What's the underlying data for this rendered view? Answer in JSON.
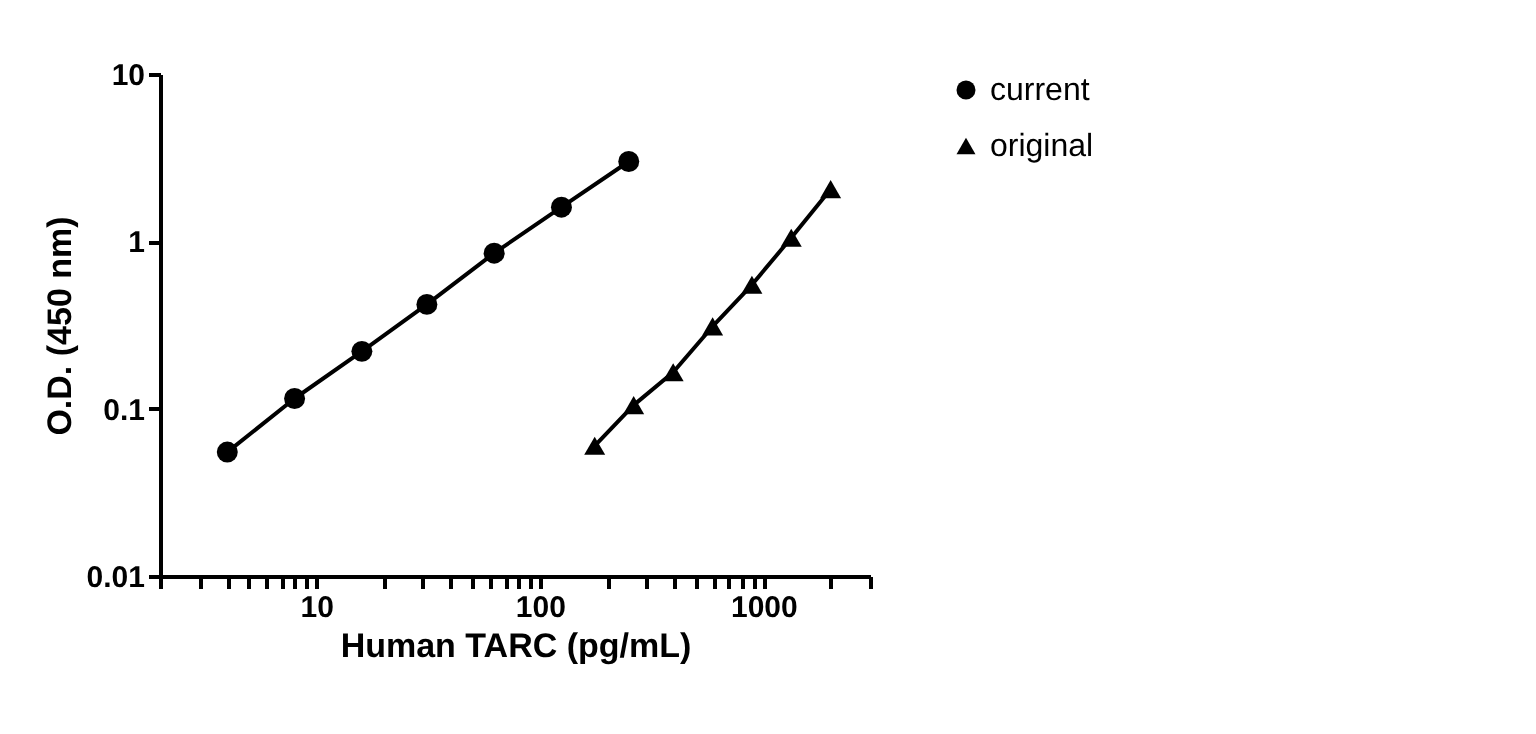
{
  "chart_data": {
    "type": "line",
    "xlabel": "Human TARC (pg/mL)",
    "ylabel": "O.D. (450 nm)",
    "log": "xy",
    "grid": false,
    "legend": "top right",
    "line_style": "solid",
    "xlim": [
      2,
      3000
    ],
    "ylim": [
      0.01,
      10
    ],
    "xticks": [
      {
        "value": 2,
        "label": null
      },
      {
        "value": 3,
        "label": null
      },
      {
        "value": 4,
        "label": null
      },
      {
        "value": 5,
        "label": null
      },
      {
        "value": 6,
        "label": null
      },
      {
        "value": 7,
        "label": null
      },
      {
        "value": 8,
        "label": null
      },
      {
        "value": 9,
        "label": null
      },
      10,
      {
        "value": 20,
        "label": null
      },
      {
        "value": 30,
        "label": null
      },
      {
        "value": 40,
        "label": null
      },
      {
        "value": 50,
        "label": null
      },
      {
        "value": 60,
        "label": null
      },
      {
        "value": 70,
        "label": null
      },
      {
        "value": 80,
        "label": null
      },
      {
        "value": 90,
        "label": null
      },
      100,
      {
        "value": 200,
        "label": null
      },
      {
        "value": 300,
        "label": null
      },
      {
        "value": 400,
        "label": null
      },
      {
        "value": 500,
        "label": null
      },
      {
        "value": 600,
        "label": null
      },
      {
        "value": 700,
        "label": null
      },
      {
        "value": 800,
        "label": null
      },
      {
        "value": 900,
        "label": null
      },
      1000,
      {
        "value": 2000,
        "label": null
      },
      {
        "value": 3000,
        "label": null
      }
    ],
    "yticks": [
      0.01,
      0.1,
      1,
      10
    ],
    "series": [
      {
        "name": "current",
        "color": "#000000",
        "marker": "circle",
        "x": [
          4,
          8,
          16,
          31.25,
          62.5,
          125,
          250
        ],
        "values": [
          0.055,
          0.115,
          0.22,
          0.42,
          0.85,
          1.6,
          3.0
        ]
      },
      {
        "name": "original",
        "color": "#000000",
        "marker": "triangle",
        "x": [
          176,
          263,
          395,
          593,
          889,
          1333,
          2000
        ],
        "values": [
          0.06,
          0.105,
          0.165,
          0.31,
          0.55,
          1.05,
          2.05
        ]
      }
    ]
  }
}
